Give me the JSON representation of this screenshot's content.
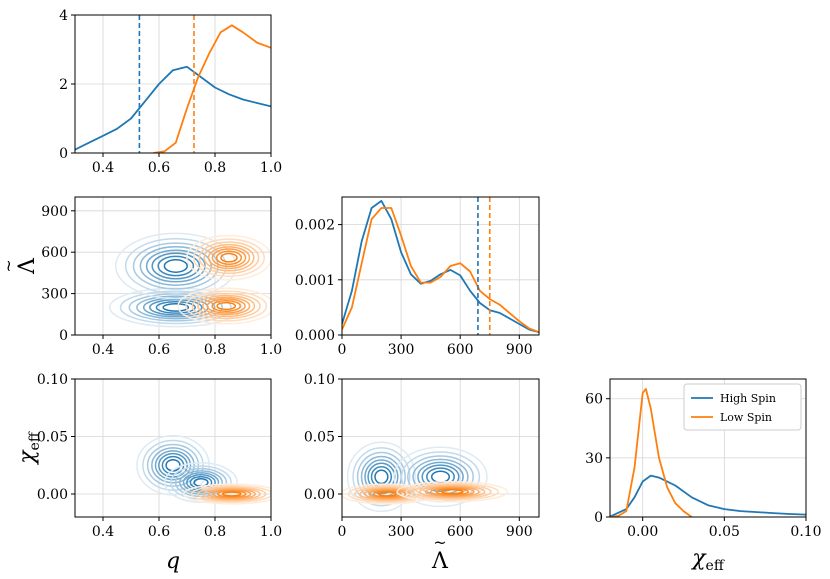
{
  "colors": {
    "high_spin": "#1f77b4",
    "low_spin": "#ff7f0e"
  },
  "legend": {
    "high_spin": "High Spin",
    "low_spin": "Low Spin",
    "placement": "top-right"
  },
  "axis_titles": {
    "q": "q",
    "lambda_symbol": "Λ",
    "chi_symbol": "χ",
    "chi_subscript": "eff"
  },
  "chart_data": [
    {
      "id": "q_marginal",
      "type": "line",
      "xlim": [
        0.3,
        1.0
      ],
      "ylim": [
        0,
        4
      ],
      "xticks": [
        "0.4",
        "0.6",
        "0.8",
        "1.0"
      ],
      "xtick_values": [
        0.4,
        0.6,
        0.8,
        1.0
      ],
      "yticks": [
        "0",
        "2",
        "4"
      ],
      "ytick_values": [
        0,
        2,
        4
      ],
      "series": [
        {
          "name": "High Spin",
          "x": [
            0.3,
            0.35,
            0.4,
            0.45,
            0.5,
            0.55,
            0.6,
            0.65,
            0.7,
            0.75,
            0.8,
            0.85,
            0.9,
            0.95,
            1.0
          ],
          "y": [
            0.1,
            0.3,
            0.5,
            0.7,
            1.0,
            1.5,
            2.0,
            2.4,
            2.5,
            2.2,
            1.9,
            1.7,
            1.55,
            1.45,
            1.35
          ]
        },
        {
          "name": "Low Spin",
          "x": [
            0.58,
            0.62,
            0.66,
            0.7,
            0.74,
            0.78,
            0.82,
            0.86,
            0.9,
            0.95,
            1.0
          ],
          "y": [
            0.0,
            0.05,
            0.3,
            1.3,
            2.2,
            2.9,
            3.5,
            3.7,
            3.5,
            3.2,
            3.05
          ]
        }
      ],
      "vlines": [
        {
          "series": "High Spin",
          "x": 0.53
        },
        {
          "series": "Low Spin",
          "x": 0.725
        }
      ]
    },
    {
      "id": "lambda_marginal",
      "type": "line",
      "xlim": [
        0,
        1000
      ],
      "ylim": [
        0,
        0.0025
      ],
      "xticks": [
        "0",
        "300",
        "600",
        "900"
      ],
      "xtick_values": [
        0,
        300,
        600,
        900
      ],
      "yticks": [
        "0.000",
        "0.001",
        "0.002"
      ],
      "ytick_values": [
        0,
        0.001,
        0.002
      ],
      "series": [
        {
          "name": "High Spin",
          "x": [
            0,
            50,
            100,
            150,
            200,
            250,
            300,
            350,
            400,
            450,
            500,
            550,
            600,
            650,
            700,
            750,
            800,
            850,
            900,
            950,
            1000
          ],
          "y": [
            0.0002,
            0.0008,
            0.0017,
            0.0023,
            0.00243,
            0.0021,
            0.0015,
            0.0011,
            0.00093,
            0.00098,
            0.0011,
            0.00118,
            0.00108,
            0.0008,
            0.00058,
            0.00045,
            0.0004,
            0.0003,
            0.0002,
            0.0001,
            5e-05
          ]
        },
        {
          "name": "Low Spin",
          "x": [
            0,
            50,
            100,
            150,
            200,
            250,
            300,
            350,
            400,
            450,
            500,
            550,
            600,
            650,
            700,
            750,
            800,
            850,
            900,
            950,
            1000
          ],
          "y": [
            0.0001,
            0.0005,
            0.0013,
            0.0021,
            0.0023,
            0.0023,
            0.0018,
            0.00125,
            0.00095,
            0.00095,
            0.00105,
            0.00125,
            0.0013,
            0.00115,
            0.0008,
            0.00065,
            0.00055,
            0.0004,
            0.00025,
            0.00012,
            5e-05
          ]
        }
      ],
      "vlines": [
        {
          "series": "High Spin",
          "x": 690
        },
        {
          "series": "Low Spin",
          "x": 750
        }
      ]
    },
    {
      "id": "chi_marginal",
      "type": "line",
      "xlim": [
        -0.02,
        0.1
      ],
      "ylim": [
        0,
        70
      ],
      "xticks": [
        "0.00",
        "0.05",
        "0.10"
      ],
      "xtick_values": [
        0,
        0.05,
        0.1
      ],
      "yticks": [
        "0",
        "30",
        "60"
      ],
      "ytick_values": [
        0,
        30,
        60
      ],
      "series": [
        {
          "name": "High Spin",
          "x": [
            -0.02,
            -0.01,
            -0.005,
            0.0,
            0.005,
            0.01,
            0.02,
            0.03,
            0.04,
            0.05,
            0.06,
            0.07,
            0.08,
            0.09,
            0.1
          ],
          "y": [
            0.2,
            4,
            10,
            18,
            21,
            20,
            16,
            10,
            6,
            4,
            3,
            2.5,
            2,
            1.5,
            1.2
          ]
        },
        {
          "name": "Low Spin",
          "x": [
            -0.02,
            -0.015,
            -0.01,
            -0.005,
            0.0,
            0.002,
            0.005,
            0.01,
            0.015,
            0.02,
            0.025,
            0.03
          ],
          "y": [
            0,
            0.5,
            3,
            25,
            63,
            65,
            55,
            30,
            15,
            7,
            3,
            0
          ]
        }
      ]
    },
    {
      "id": "q_lambda_joint",
      "type": "contour",
      "xlim": [
        0.3,
        1.0
      ],
      "ylim": [
        0,
        1000
      ],
      "xticks": [
        "0.4",
        "0.6",
        "0.8",
        "1.0"
      ],
      "xtick_values": [
        0.4,
        0.6,
        0.8,
        1.0
      ],
      "yticks": [
        "0",
        "300",
        "600",
        "900"
      ],
      "ytick_values": [
        0,
        300,
        600,
        900
      ],
      "series": [
        {
          "name": "High Spin",
          "peaks": [
            {
              "x": 0.66,
              "y": 200,
              "sx": 0.11,
              "sy": 65
            },
            {
              "x": 0.66,
              "y": 500,
              "sx": 0.1,
              "sy": 110
            }
          ]
        },
        {
          "name": "Low Spin",
          "peaks": [
            {
              "x": 0.84,
              "y": 210,
              "sx": 0.08,
              "sy": 60
            },
            {
              "x": 0.85,
              "y": 560,
              "sx": 0.07,
              "sy": 75
            }
          ]
        }
      ]
    },
    {
      "id": "q_chi_joint",
      "type": "contour",
      "xlim": [
        0.3,
        1.0
      ],
      "ylim": [
        -0.02,
        0.1
      ],
      "xticks": [
        "0.4",
        "0.6",
        "0.8",
        "1.0"
      ],
      "xtick_values": [
        0.4,
        0.6,
        0.8,
        1.0
      ],
      "yticks": [
        "0.00",
        "0.05",
        "0.10"
      ],
      "ytick_values": [
        0,
        0.05,
        0.1
      ],
      "series": [
        {
          "name": "High Spin",
          "peaks": [
            {
              "x": 0.65,
              "y": 0.025,
              "sx": 0.06,
              "sy": 0.012
            },
            {
              "x": 0.75,
              "y": 0.01,
              "sx": 0.06,
              "sy": 0.008
            }
          ]
        },
        {
          "name": "Low Spin",
          "peaks": [
            {
              "x": 0.86,
              "y": 0.0,
              "sx": 0.08,
              "sy": 0.004
            }
          ]
        }
      ]
    },
    {
      "id": "lambda_chi_joint",
      "type": "contour",
      "xlim": [
        0,
        1000
      ],
      "ylim": [
        -0.02,
        0.1
      ],
      "xticks": [
        "0",
        "300",
        "600",
        "900"
      ],
      "xtick_values": [
        0,
        300,
        600,
        900
      ],
      "yticks": [
        "0.00",
        "0.05",
        "0.10"
      ],
      "ytick_values": [
        0,
        0.05,
        0.1
      ],
      "series": [
        {
          "name": "High Spin",
          "peaks": [
            {
              "x": 200,
              "y": 0.015,
              "sx": 80,
              "sy": 0.014
            },
            {
              "x": 500,
              "y": 0.015,
              "sx": 110,
              "sy": 0.012
            }
          ]
        },
        {
          "name": "Low Spin",
          "peaks": [
            {
              "x": 230,
              "y": 0.0,
              "sx": 110,
              "sy": 0.004
            },
            {
              "x": 560,
              "y": 0.002,
              "sx": 130,
              "sy": 0.004
            }
          ]
        }
      ]
    }
  ]
}
